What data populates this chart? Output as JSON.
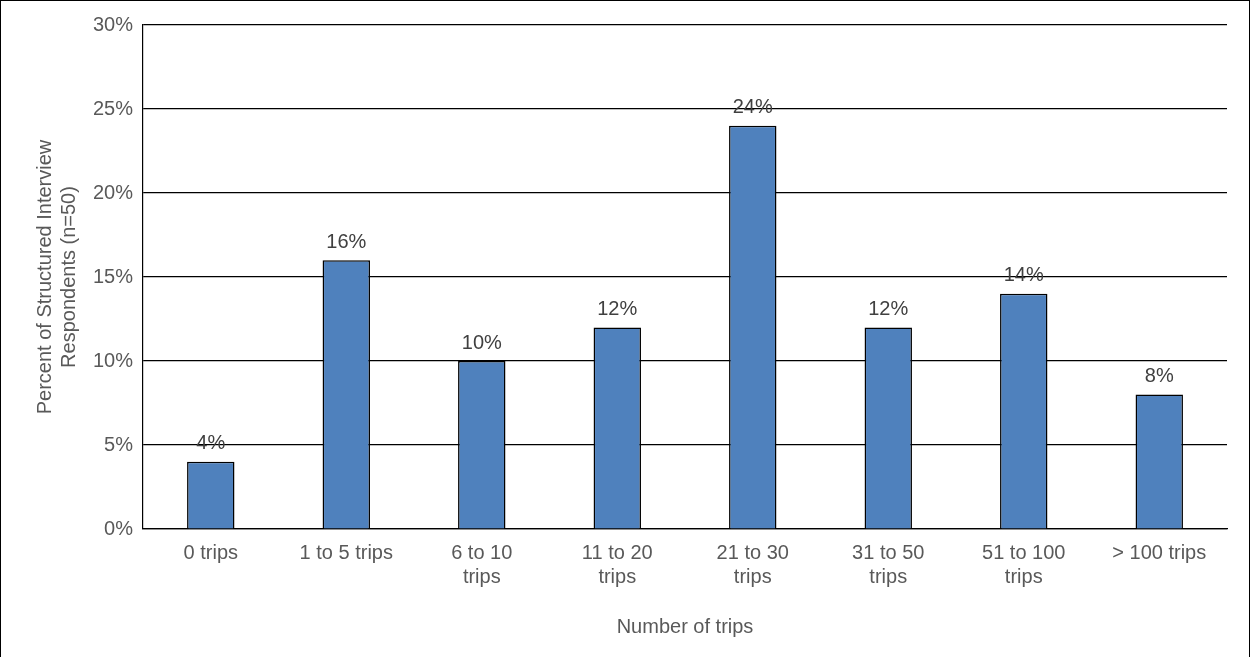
{
  "chart_data": {
    "type": "bar",
    "xlabel": "Number of trips",
    "ylabel": "Percent of Structured Interview Respondents (n=50)",
    "categories": [
      "0 trips",
      "1 to 5 trips",
      "6 to 10 trips",
      "11 to 20 trips",
      "21 to 30 trips",
      "31 to 50 trips",
      "51 to 100 trips",
      "> 100 trips"
    ],
    "values": [
      4,
      16,
      10,
      12,
      24,
      12,
      14,
      8
    ],
    "value_labels": [
      "4%",
      "16%",
      "10%",
      "12%",
      "24%",
      "12%",
      "14%",
      "8%"
    ],
    "color": "#4f81bd",
    "ylim": [
      0,
      30
    ],
    "yticks": [
      {
        "value": 0,
        "label": "0%"
      },
      {
        "value": 5,
        "label": "5%"
      },
      {
        "value": 10,
        "label": "10%"
      },
      {
        "value": 15,
        "label": "15%"
      },
      {
        "value": 20,
        "label": "20%"
      },
      {
        "value": 25,
        "label": "25%"
      },
      {
        "value": 30,
        "label": "30%"
      }
    ],
    "grid": "y",
    "legend": false
  }
}
